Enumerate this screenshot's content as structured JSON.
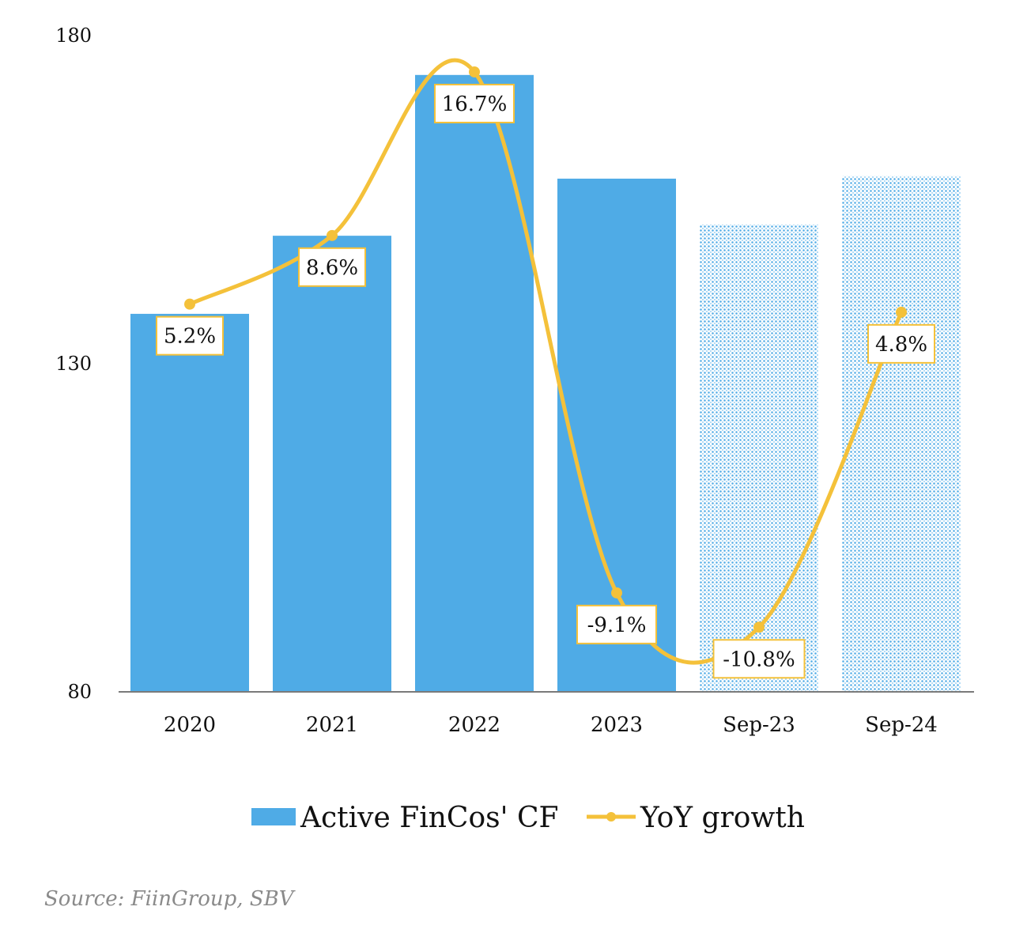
{
  "chart_data": {
    "type": "bar",
    "categories": [
      "2020",
      "2021",
      "2022",
      "2023",
      "Sep-23",
      "Sep-24"
    ],
    "projected_categories": [
      "Sep-23",
      "Sep-24"
    ],
    "series": [
      {
        "name": "Active FinCos' CF",
        "type": "bar",
        "values": [
          137.6,
          149.5,
          174.0,
          158.2,
          151.2,
          158.6
        ],
        "color": "#4fabe6"
      },
      {
        "name": "YoY growth",
        "type": "line",
        "values": [
          5.2,
          8.6,
          16.7,
          -9.1,
          -10.8,
          4.8
        ],
        "data_labels": [
          "5.2%",
          "8.6%",
          "16.7%",
          "-9.1%",
          "-10.8%",
          "4.8%"
        ],
        "color": "#f4c13a"
      }
    ],
    "yticks": [
      "180",
      "130",
      "80"
    ],
    "ylim": [
      80,
      180
    ],
    "y2lim": [
      -14,
      18.5
    ],
    "legend_position": "bottom",
    "grid": false
  },
  "source": "Source: FiinGroup, SBV"
}
